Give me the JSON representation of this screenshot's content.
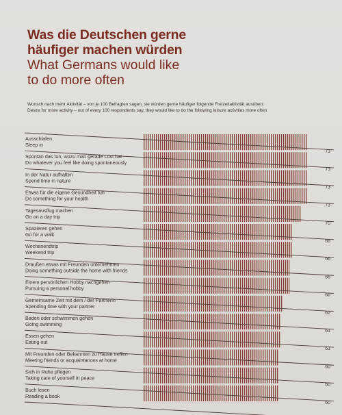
{
  "header": {
    "title_de_line1": "Was die Deutschen gerne",
    "title_de_line2": "häufiger machen würden",
    "title_en_line1": "What Germans would like",
    "title_en_line2": "to do more often",
    "desc_de": "Wunsch nach mehr Aktivität – von je 100 Befragten sagen, sie würden gerne häufiger folgende Freizeitaktivität ausüben:",
    "desc_en": "Desire for more activity – out of every 100 respondents say, they would like to do the following leisure activities more often"
  },
  "colors": {
    "accent": "#7a2b22",
    "bar": "#7a2b22",
    "text": "#3a2e2a",
    "line": "#4a3a36"
  },
  "chart_data": {
    "type": "bar",
    "orientation": "horizontal",
    "categories": [
      {
        "de": "Ausschlafen",
        "en": "Sleep in"
      },
      {
        "de": "Spontan das tun, wozu man gerade Lust hat",
        "en": "Do whatever you feel like doing spontaneously"
      },
      {
        "de": "In der Natur aufhalten",
        "en": "Spend time in nature"
      },
      {
        "de": "Etwas für die eigene Gesundheit tun",
        "en": "Do something for your health"
      },
      {
        "de": "Tagesausflug machen",
        "en": "Go on a day trip"
      },
      {
        "de": "Spazieren gehen",
        "en": "Go for a walk"
      },
      {
        "de": "Wochenendtrip",
        "en": "Weekend trip"
      },
      {
        "de": "Draußen etwas mit Freunden unternehmen",
        "en": "Doing something outside the home with friends"
      },
      {
        "de": "Einem persönlichen Hobby nachgehen",
        "en": "Pursuing a personal hobby"
      },
      {
        "de": "Gemeinsame Zeit mit dem / der Partnerin",
        "en": "Spending time with your partner"
      },
      {
        "de": "Baden oder schwimmen gehen",
        "en": "Going swimming"
      },
      {
        "de": "Essen gehen",
        "en": "Eating out"
      },
      {
        "de": "Mit Freunden oder Bekannten zu Hause treffen",
        "en": "Meeting friends or acquaintances at home"
      },
      {
        "de": "Sich in Ruhe pflegen",
        "en": "Taking care of yourself in peace"
      },
      {
        "de": "Buch lesen",
        "en": "Reading a book"
      }
    ],
    "values": [
      73,
      73,
      73,
      73,
      70,
      66,
      66,
      65,
      65,
      62,
      61,
      61,
      60,
      60,
      60
    ],
    "xlim": [
      0,
      100
    ]
  }
}
